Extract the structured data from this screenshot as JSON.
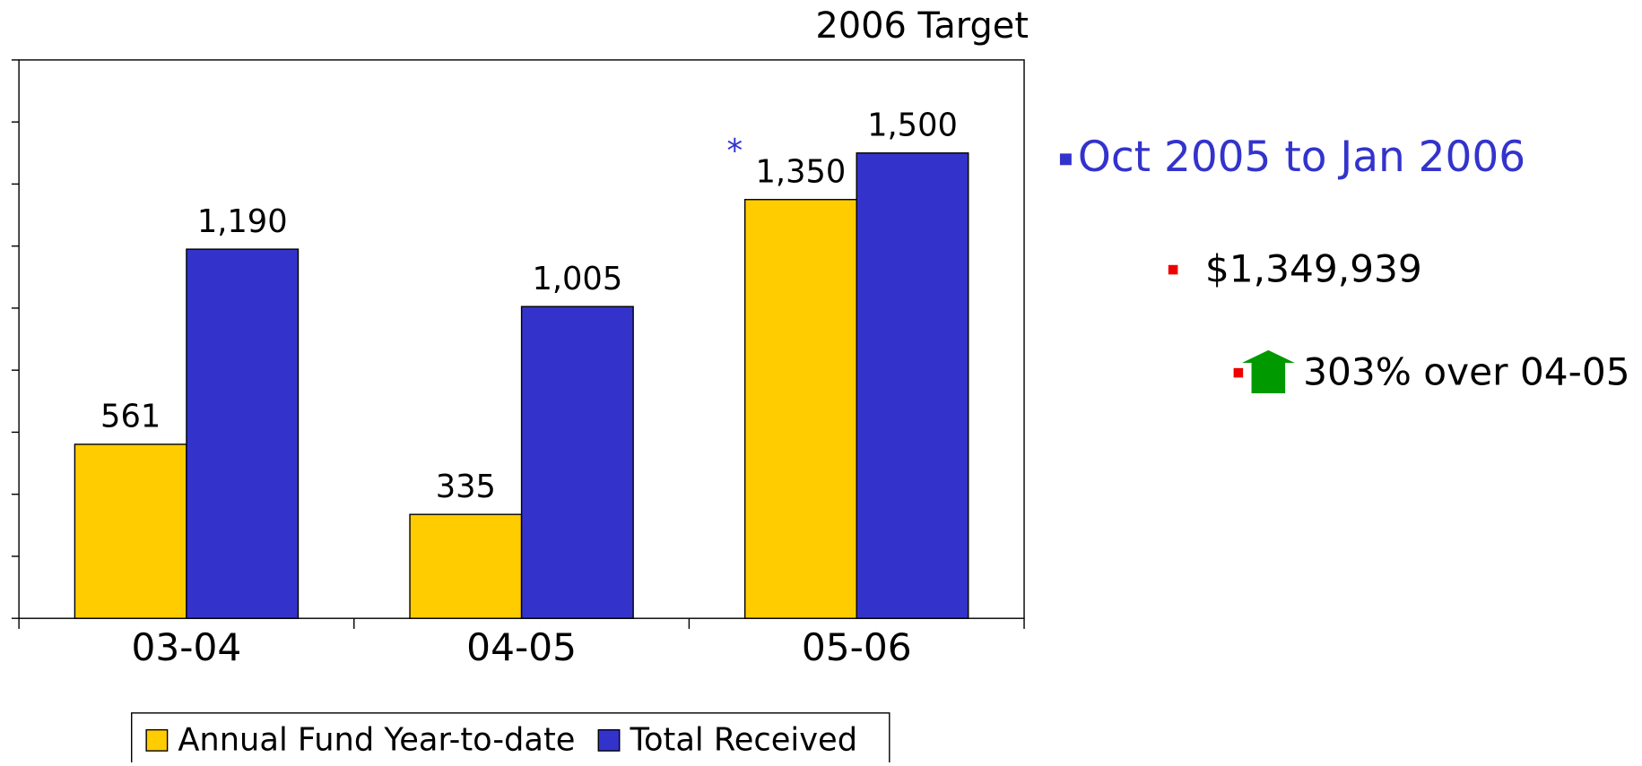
{
  "chart_data": {
    "type": "bar",
    "categories": [
      "03-04",
      "04-05",
      "05-06"
    ],
    "series": [
      {
        "name": "Annual Fund Year-to-date",
        "color": "#ffcc00",
        "values": [
          561,
          335,
          1350
        ],
        "value_labels": [
          "561",
          "335",
          "1,350"
        ]
      },
      {
        "name": "Total Received",
        "color": "#3333cc",
        "values": [
          1190,
          1005,
          1500
        ],
        "value_labels": [
          "1,190",
          "1,005",
          "1,500"
        ]
      }
    ],
    "ylim": [
      0,
      1800
    ],
    "yticks": [
      0,
      200,
      400,
      600,
      800,
      1000,
      1200,
      1400,
      1600,
      1800
    ],
    "annotations": [
      "2006 Target",
      "*"
    ],
    "side_notes": [
      "Oct 2005 to Jan 2006",
      "$1,349,939",
      "303% over 04-05"
    ]
  }
}
